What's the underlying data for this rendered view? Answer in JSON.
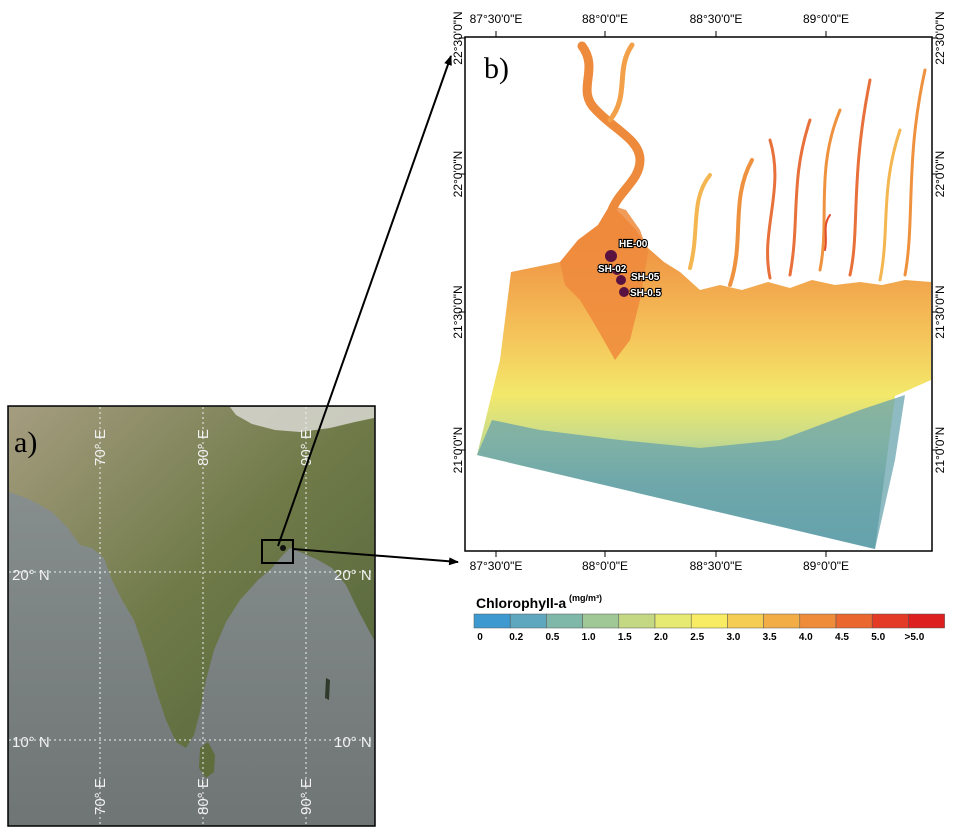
{
  "panel_a": {
    "label": "a)",
    "lon_labels_top": [
      "70° E",
      "80° E",
      "90° E"
    ],
    "lon_labels_bottom": [
      "70° E",
      "80° E",
      "90° E"
    ],
    "lat_labels_left": [
      "20° N",
      "10° N"
    ],
    "lat_labels_right": [
      "20° N",
      "10° N"
    ]
  },
  "panel_b": {
    "label": "b)",
    "lon_labels_top": [
      "87°30'0\"E",
      "88°0'0\"E",
      "88°30'0\"E",
      "89°0'0\"E"
    ],
    "lon_labels_bottom": [
      "87°30'0\"E",
      "88°0'0\"E",
      "88°30'0\"E",
      "89°0'0\"E"
    ],
    "lat_labels_left": [
      "22°30'0\"N",
      "22°0'0\"N",
      "21°30'0\"N",
      "21°0'0\"N"
    ],
    "lat_labels_right": [
      "22°30'0\"N",
      "22°0'0\"N",
      "21°30'0\"N",
      "21°0'0\"N"
    ],
    "stations": [
      {
        "name": "HE-00"
      },
      {
        "name": "SH-02"
      },
      {
        "name": "SH-05"
      },
      {
        "name": "SH-0.5"
      }
    ],
    "station_color": "#5a1340"
  },
  "legend": {
    "title": "Chlorophyll-a",
    "unit": "(mg/m³)",
    "ticks": [
      "0",
      "0.2",
      "0.5",
      "1.0",
      "1.5",
      "2.0",
      "2.5",
      "3.0",
      "3.5",
      "4.0",
      "4.5",
      "5.0",
      ">5.0"
    ],
    "colors": [
      "#3d99cf",
      "#5fa7bf",
      "#7fb7a8",
      "#a0c796",
      "#c4d884",
      "#e7ea72",
      "#f8ec64",
      "#f5cd52",
      "#f2ad46",
      "#ef8c3a",
      "#ea682f",
      "#e43b26",
      "#dd1f1f"
    ]
  }
}
